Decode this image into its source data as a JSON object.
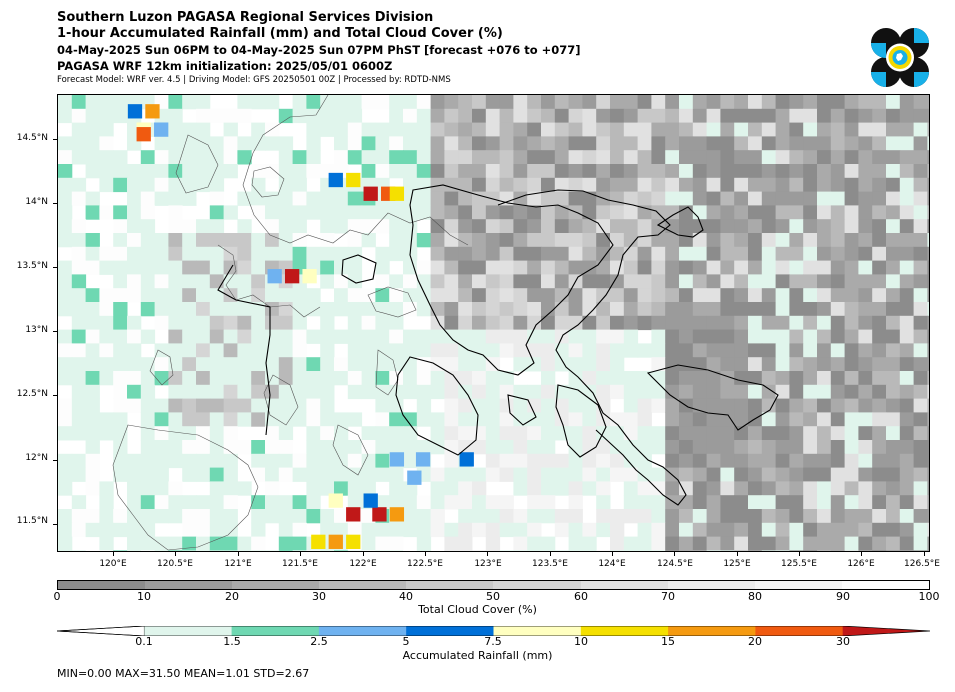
{
  "header": {
    "line1": "Southern Luzon PAGASA Regional Services Division",
    "line2": "1-hour Accumulated Rainfall (mm) and Total Cloud Cover (%)",
    "line3": "04-May-2025 Sun 06PM to 04-May-2025 Sun 07PM PhST [forecast +076 to +077]",
    "line4": "PAGASA WRF 12km initialization: 2025/05/01 0600Z",
    "line5": "Forecast Model: WRF ver. 4.5 | Driving Model: GFS 20250501 00Z | Processed by: RDTD-NMS"
  },
  "map": {
    "lat_labels": [
      "14.5°N",
      "14°N",
      "13.5°N",
      "13°N",
      "12.5°N",
      "12°N",
      "11.5°N"
    ],
    "lat_values": [
      14.5,
      14.0,
      13.5,
      13.0,
      12.5,
      12.0,
      11.5
    ],
    "lon_labels": [
      "120°E",
      "120.5°E",
      "121°E",
      "121.5°E",
      "122°E",
      "122.5°E",
      "123°E",
      "123.5°E",
      "124°E",
      "124.5°E",
      "125°E",
      "125.5°E",
      "126°E",
      "126.5°E"
    ],
    "lon_values": [
      120.0,
      120.5,
      121.0,
      121.5,
      122.0,
      122.5,
      123.0,
      123.5,
      124.0,
      124.5,
      125.0,
      125.5,
      126.0,
      126.5
    ],
    "extent": {
      "lon_min": 119.55,
      "lon_max": 126.55,
      "lat_min": 11.28,
      "lat_max": 14.85
    }
  },
  "cloud_colorbar": {
    "title": "Total Cloud Cover (%)",
    "labels": [
      "0",
      "10",
      "20",
      "30",
      "40",
      "50",
      "60",
      "70",
      "80",
      "90",
      "100"
    ],
    "colors": [
      "#8c8c8c",
      "#9b9b9b",
      "#aaaaaa",
      "#b9b9b9",
      "#c8c8c8",
      "#d5d5d5",
      "#e1e1e1",
      "#ececec",
      "#f5f5f5",
      "#fdfdfd"
    ]
  },
  "rain_colorbar": {
    "title": "Accumulated Rainfall (mm)",
    "labels": [
      "0.1",
      "1.5",
      "2.5",
      "5",
      "7.5",
      "10",
      "15",
      "20",
      "30"
    ],
    "colors": [
      "#e0f5ec",
      "#6fd8b2",
      "#6fb2f0",
      "#0070d8",
      "#ffffc0",
      "#f5e000",
      "#f59a10",
      "#f05a10",
      "#c01818"
    ]
  },
  "stats": {
    "text": "MIN=0.00   MAX=31.50   MEAN=1.01   STD=2.67"
  },
  "logo": {
    "icon": "pagasa-logo",
    "colors": [
      "#111111",
      "#18b0e8",
      "#f5d800"
    ]
  }
}
